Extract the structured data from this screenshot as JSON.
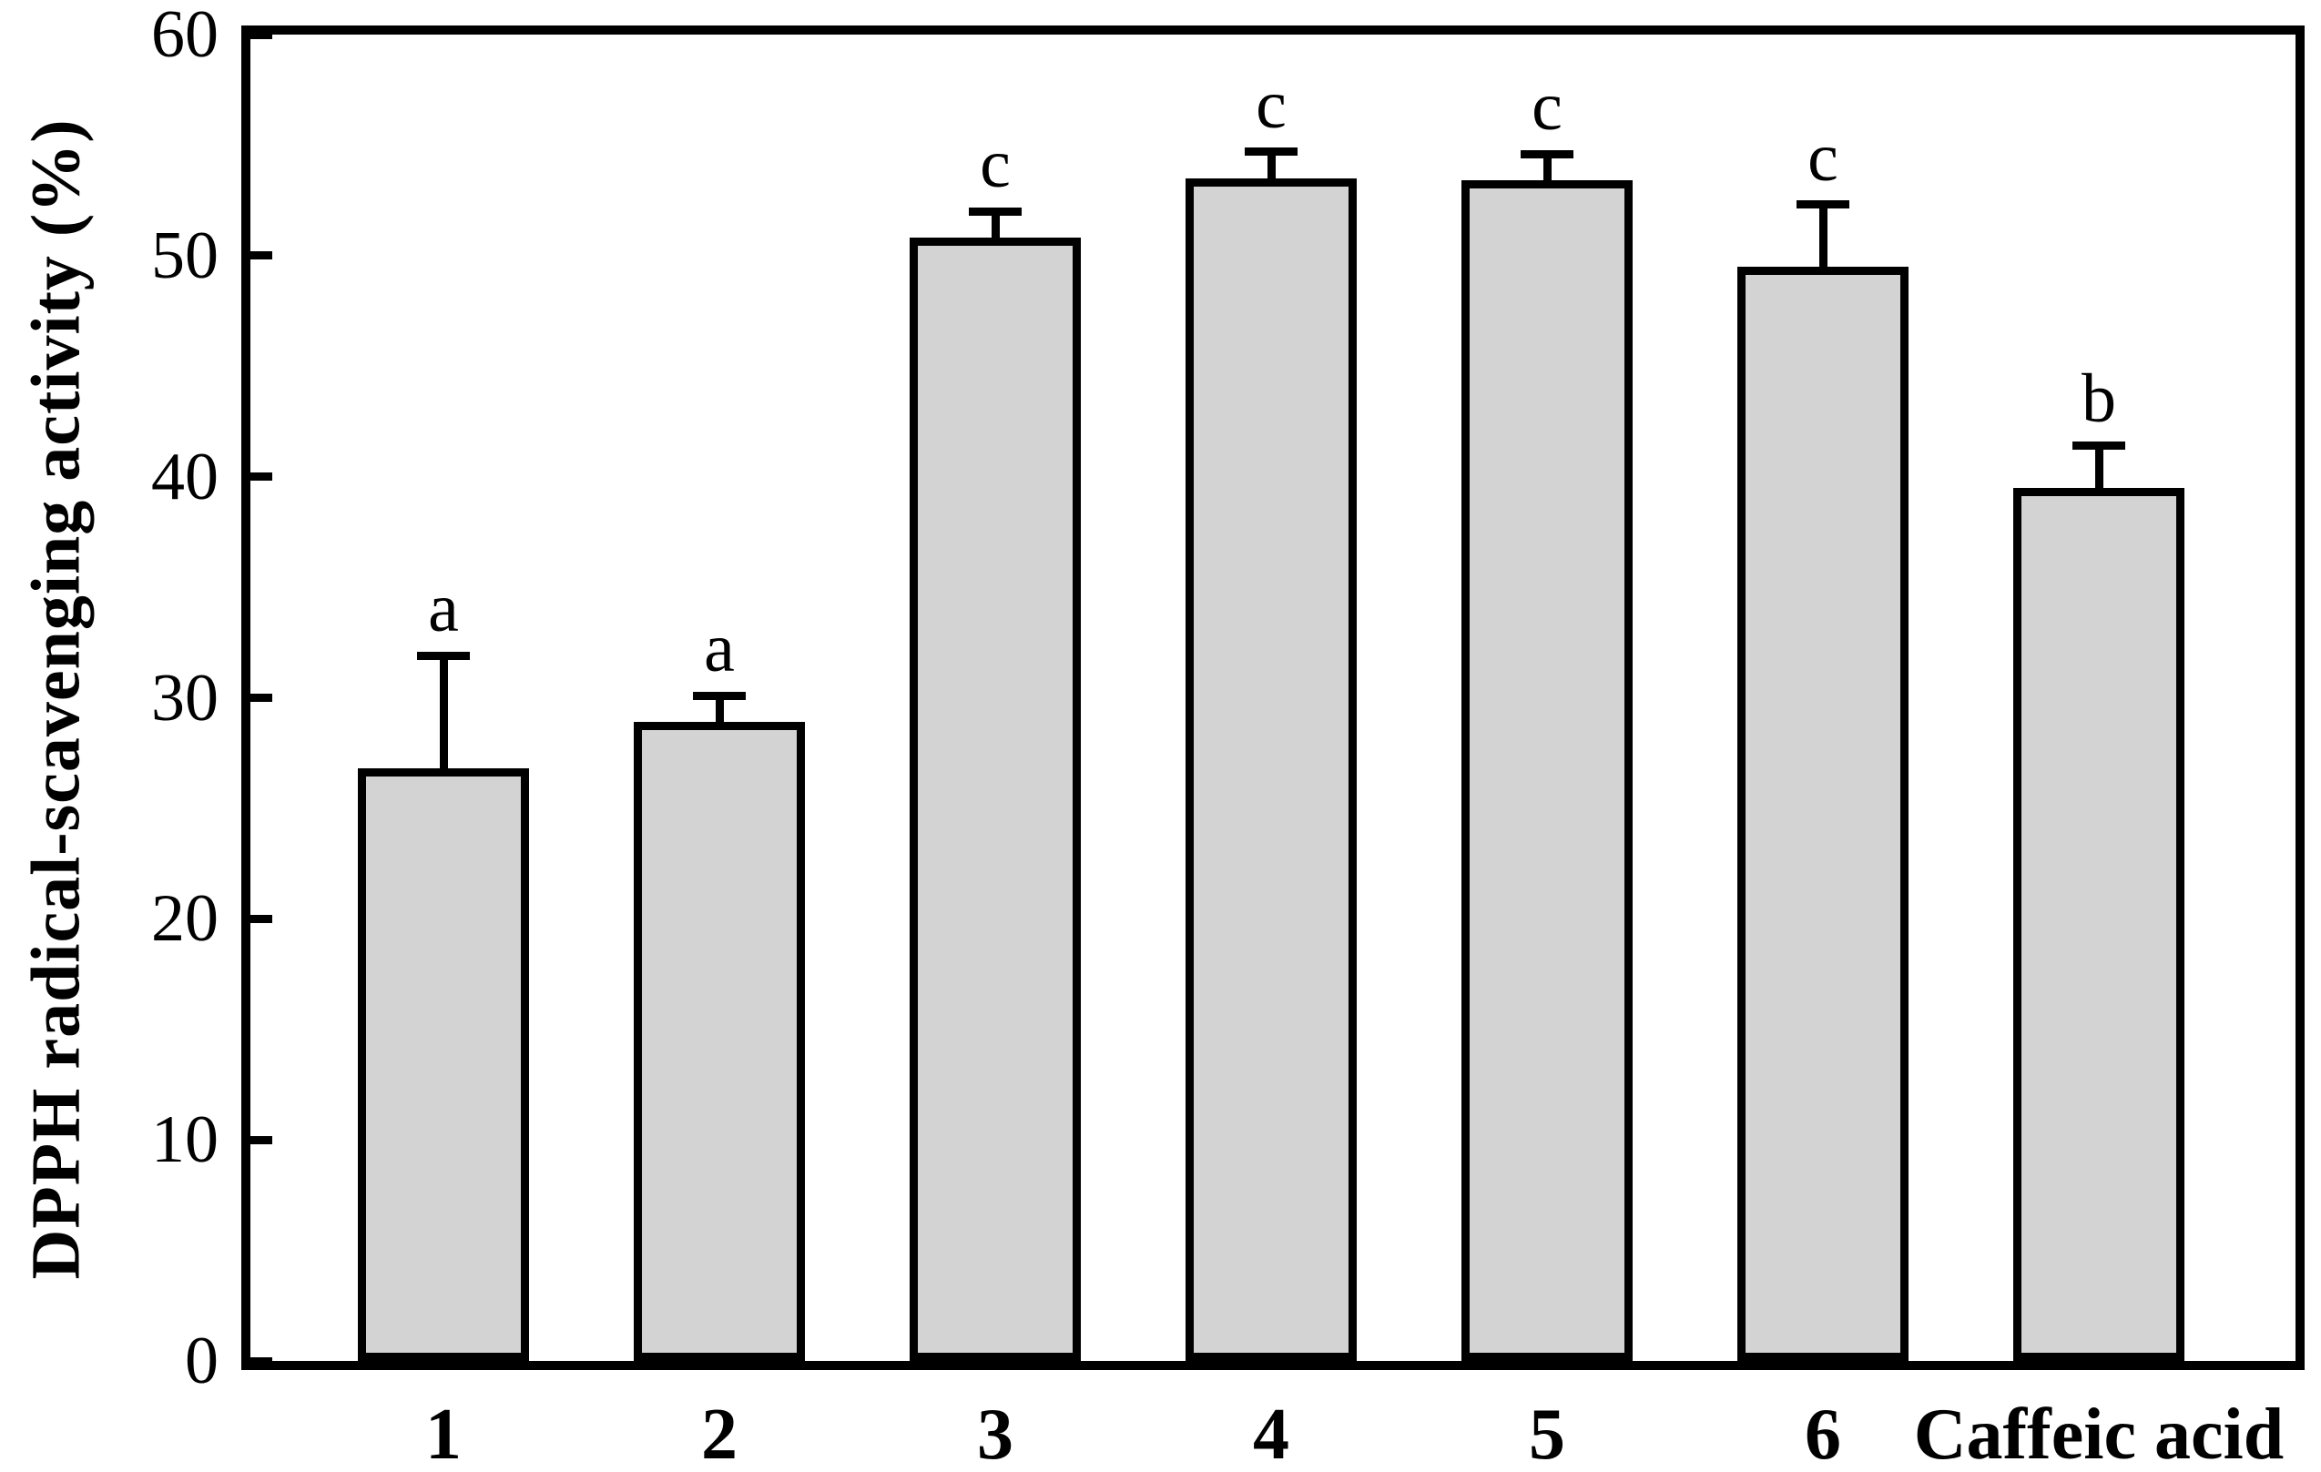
{
  "chart_data": {
    "type": "bar",
    "title": "",
    "ylabel": "DPPH radical-scavenging activity (%)",
    "xlabel": "",
    "ylim": [
      0,
      60
    ],
    "yticks": [
      0,
      10,
      20,
      30,
      40,
      50,
      60
    ],
    "grid": false,
    "legend": false,
    "categories": [
      "1",
      "2",
      "3",
      "4",
      "5",
      "6",
      "Caffeic acid"
    ],
    "values": [
      26.8,
      28.9,
      50.8,
      53.5,
      53.4,
      49.5,
      39.5
    ],
    "errors_upper": [
      5.1,
      1.2,
      1.2,
      1.2,
      1.2,
      2.8,
      1.9
    ],
    "significance_letters": [
      "a",
      "a",
      "c",
      "c",
      "c",
      "c",
      "b"
    ],
    "error_bars": "upper_only_with_T_caps",
    "colors": {
      "bar_fill": "#d3d3d3",
      "bar_border": "#000000",
      "axis": "#000000",
      "background": "#ffffff"
    }
  }
}
